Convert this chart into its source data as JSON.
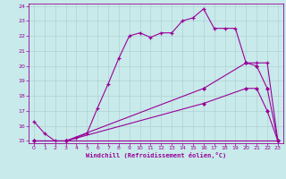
{
  "xlabel": "Windchill (Refroidissement éolien,°C)",
  "xlim": [
    -0.5,
    23.5
  ],
  "ylim": [
    14.85,
    24.15
  ],
  "xticks": [
    0,
    1,
    2,
    3,
    4,
    5,
    6,
    7,
    8,
    9,
    10,
    11,
    12,
    13,
    14,
    15,
    16,
    17,
    18,
    19,
    20,
    21,
    22,
    23
  ],
  "yticks": [
    15,
    16,
    17,
    18,
    19,
    20,
    21,
    22,
    23,
    24
  ],
  "bg_color": "#c8eaea",
  "line_color": "#990099",
  "grid_color": "#aacccc",
  "line1_x": [
    0,
    1,
    2,
    3,
    4,
    5,
    6,
    7,
    8,
    9,
    10,
    11,
    12,
    13,
    14,
    15,
    16,
    17,
    18,
    19,
    20,
    21,
    22,
    23
  ],
  "line1_y": [
    16.3,
    15.5,
    15.0,
    15.0,
    15.2,
    15.5,
    17.2,
    18.8,
    20.5,
    22.0,
    22.2,
    21.9,
    22.2,
    22.2,
    23.0,
    23.2,
    23.8,
    22.5,
    22.5,
    22.5,
    20.2,
    20.2,
    20.2,
    15.0
  ],
  "line2_x": [
    0,
    3,
    23
  ],
  "line2_y": [
    15.0,
    15.0,
    15.0
  ],
  "line3_x": [
    0,
    3,
    16,
    20,
    21,
    22,
    23
  ],
  "line3_y": [
    15.0,
    15.0,
    18.5,
    20.2,
    20.0,
    18.5,
    15.0
  ],
  "line4_x": [
    0,
    3,
    16,
    20,
    21,
    22,
    23
  ],
  "line4_y": [
    15.0,
    15.0,
    17.5,
    18.5,
    18.5,
    17.0,
    15.0
  ]
}
